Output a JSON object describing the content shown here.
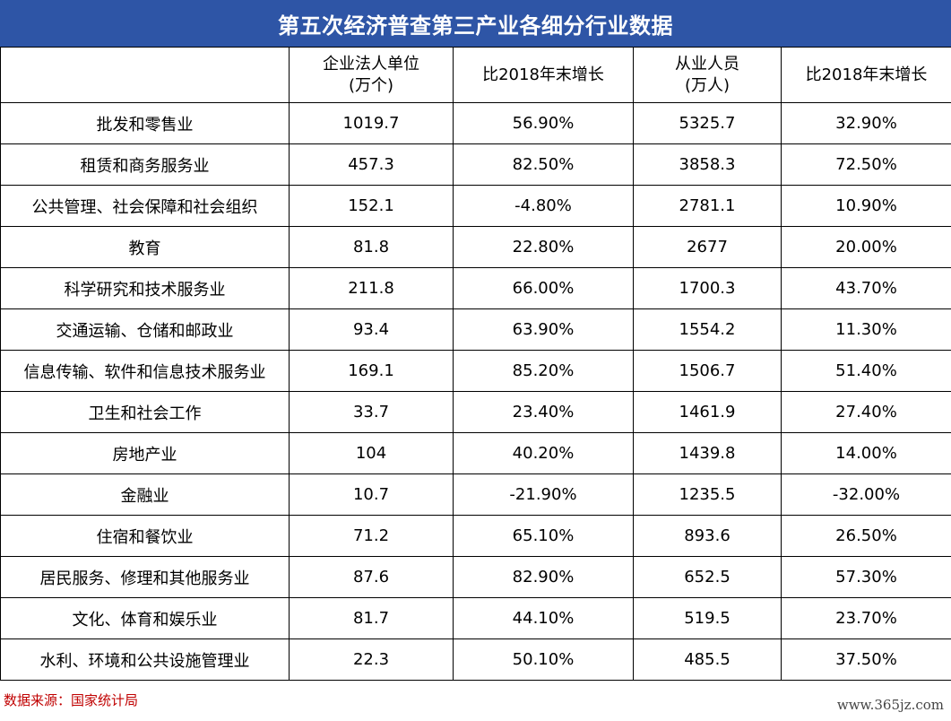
{
  "title": "第五次经济普查第三产业各细分行业数据",
  "headers": [
    "",
    "企业法人单位\n(万个)",
    "比2018年末增长",
    "从业人员\n(万人)",
    "比2018年末增长"
  ],
  "rows": [
    [
      "批发和零售业",
      "1019.7",
      "56.90%",
      "5325.7",
      "32.90%"
    ],
    [
      "租赁和商务服务业",
      "457.3",
      "82.50%",
      "3858.3",
      "72.50%"
    ],
    [
      "公共管理、社会保障和社会组织",
      "152.1",
      "-4.80%",
      "2781.1",
      "10.90%"
    ],
    [
      "教育",
      "81.8",
      "22.80%",
      "2677",
      "20.00%"
    ],
    [
      "科学研究和技术服务业",
      "211.8",
      "66.00%",
      "1700.3",
      "43.70%"
    ],
    [
      "交通运输、仓储和邮政业",
      "93.4",
      "63.90%",
      "1554.2",
      "11.30%"
    ],
    [
      "信息传输、软件和信息技术服务业",
      "169.1",
      "85.20%",
      "1506.7",
      "51.40%"
    ],
    [
      "卫生和社会工作",
      "33.7",
      "23.40%",
      "1461.9",
      "27.40%"
    ],
    [
      "房地产业",
      "104",
      "40.20%",
      "1439.8",
      "14.00%"
    ],
    [
      "金融业",
      "10.7",
      "-21.90%",
      "1235.5",
      "-32.00%"
    ],
    [
      "住宿和餐饮业",
      "71.2",
      "65.10%",
      "893.6",
      "26.50%"
    ],
    [
      "居民服务、修理和其他服务业",
      "87.6",
      "82.90%",
      "652.5",
      "57.30%"
    ],
    [
      "文化、体育和娱乐业",
      "81.7",
      "44.10%",
      "519.5",
      "23.70%"
    ],
    [
      "水利、环境和公共设施管理业",
      "22.3",
      "50.10%",
      "485.5",
      "37.50%"
    ]
  ],
  "source": "数据来源：国家统计局",
  "watermark": "www.365jz.com",
  "colors": {
    "title_bg": "#2e55a6",
    "title_text": "#ffffff",
    "source_text": "#c00000"
  }
}
